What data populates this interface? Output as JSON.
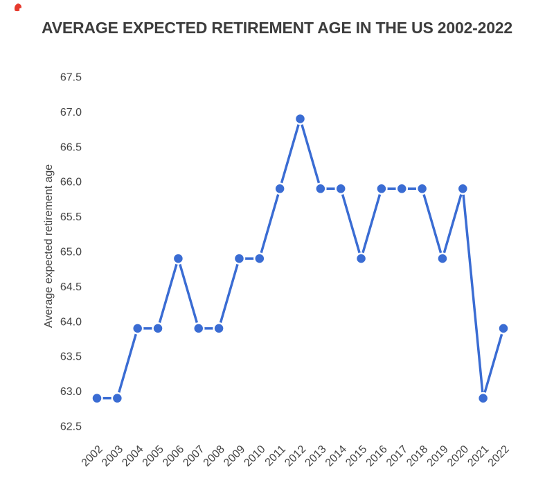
{
  "page": {
    "title": "AVERAGE EXPECTED RETIREMENT AGE IN THE US 2002-2022"
  },
  "decorations": {
    "red_mark_color": "#e63a2e"
  },
  "chart_data": {
    "type": "line",
    "title": "AVERAGE EXPECTED RETIREMENT AGE IN THE US 2002-2022",
    "xlabel": "",
    "ylabel": "Average expected retirement age",
    "categories": [
      "2002",
      "2003",
      "2004",
      "2005",
      "2006",
      "2007",
      "2008",
      "2009",
      "2010",
      "2011",
      "2012",
      "2013",
      "2014",
      "2015",
      "2016",
      "2017",
      "2018",
      "2019",
      "2020",
      "2021",
      "2022"
    ],
    "series": [
      {
        "name": "Average expected retirement age",
        "values": [
          62.9,
          62.9,
          63.9,
          63.9,
          64.9,
          63.9,
          63.9,
          64.9,
          64.9,
          65.9,
          66.9,
          65.9,
          65.9,
          64.9,
          65.9,
          65.9,
          65.9,
          64.9,
          65.9,
          62.9,
          63.9
        ]
      }
    ],
    "ylim": [
      62.5,
      67.5
    ],
    "ytick_step": 0.5,
    "ytick_labels": [
      "62.5",
      "63.0",
      "63.5",
      "64.0",
      "64.5",
      "65.0",
      "65.5",
      "66.0",
      "66.5",
      "67.0",
      "67.5"
    ],
    "grid": false,
    "axis_lines": false,
    "legend": "none",
    "marker": "circle-with-white-outline",
    "colors": {
      "line": "#3a6cd3",
      "point": "#3a6cd3",
      "point_outline": "#ffffff",
      "tick_text": "#424242",
      "title_text": "#3c3c3c"
    }
  }
}
